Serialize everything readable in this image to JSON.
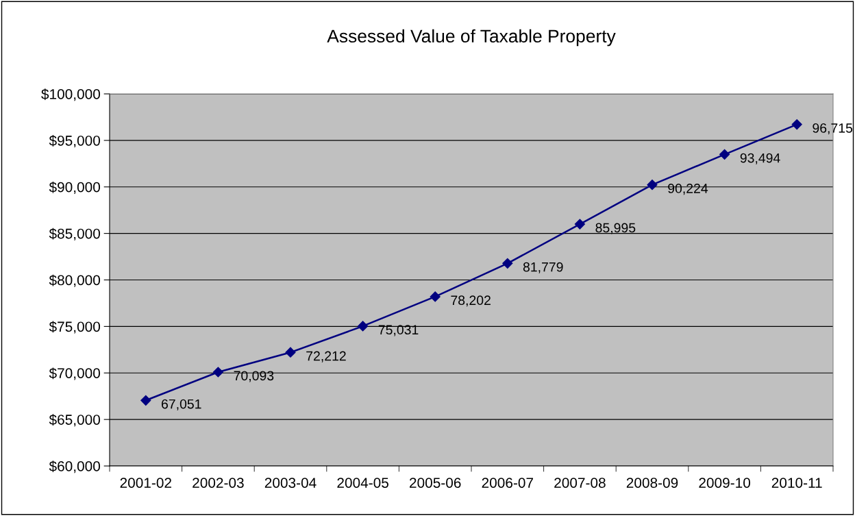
{
  "chart_data": {
    "type": "line",
    "title": "Assessed Value of Taxable Property",
    "categories": [
      "2001-02",
      "2002-03",
      "2003-04",
      "2004-05",
      "2005-06",
      "2006-07",
      "2007-08",
      "2008-09",
      "2009-10",
      "2010-11"
    ],
    "series": [
      {
        "color": "#000080",
        "values": [
          67051,
          70093,
          72212,
          75031,
          78202,
          81779,
          85995,
          90224,
          93494,
          96715
        ],
        "value_labels": [
          "67,051",
          "70,093",
          "72,212",
          "75,031",
          "78,202",
          "81,779",
          "85,995",
          "90,224",
          "93,494",
          "96,715"
        ]
      }
    ],
    "ylim": [
      60000,
      100000
    ],
    "yticks": [
      {
        "value": 60000,
        "label": "$60,000"
      },
      {
        "value": 65000,
        "label": "$65,000"
      },
      {
        "value": 70000,
        "label": "$70,000"
      },
      {
        "value": 75000,
        "label": "$75,000"
      },
      {
        "value": 80000,
        "label": "$80,000"
      },
      {
        "value": 85000,
        "label": "$85,000"
      },
      {
        "value": 90000,
        "label": "$90,000"
      },
      {
        "value": 95000,
        "label": "$95,000"
      },
      {
        "value": 100000,
        "label": "$100,000"
      }
    ],
    "grid": "y",
    "marker": "diamond",
    "line_style": "solid"
  }
}
